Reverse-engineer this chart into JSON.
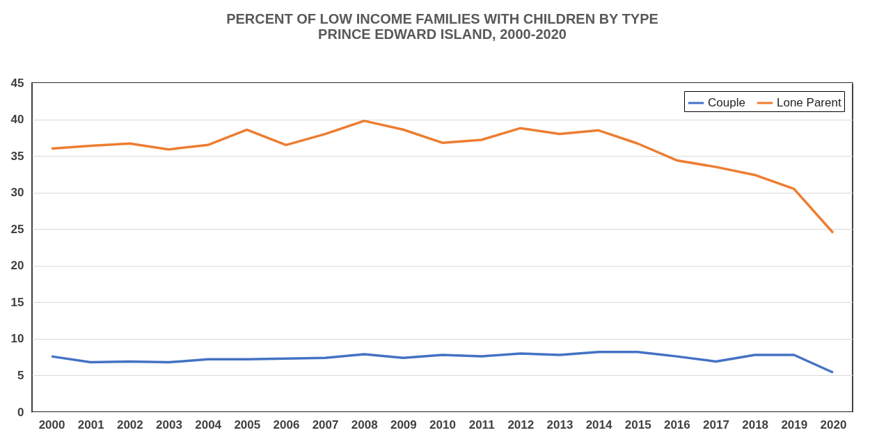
{
  "chart_data": {
    "type": "line",
    "title": "PERCENT OF LOW INCOME FAMILIES WITH CHILDREN BY TYPE",
    "subtitle": "PRINCE EDWARD ISLAND, 2000-2020",
    "categories": [
      "2000",
      "2001",
      "2002",
      "2003",
      "2004",
      "2005",
      "2006",
      "2007",
      "2008",
      "2009",
      "2010",
      "2011",
      "2012",
      "2013",
      "2014",
      "2015",
      "2016",
      "2017",
      "2018",
      "2019",
      "2020"
    ],
    "series": [
      {
        "name": "Couple",
        "color": "#4472c4",
        "values": [
          7.6,
          6.8,
          6.9,
          6.8,
          7.2,
          7.2,
          7.3,
          7.4,
          7.9,
          7.4,
          7.8,
          7.6,
          8.0,
          7.8,
          8.2,
          8.2,
          7.6,
          6.9,
          7.8,
          7.8,
          5.4
        ]
      },
      {
        "name": "Lone Parent",
        "color": "#ed7d31",
        "values": [
          36.0,
          36.4,
          36.7,
          35.9,
          36.5,
          38.6,
          36.5,
          38.0,
          39.8,
          38.6,
          36.8,
          37.2,
          38.8,
          38.0,
          38.5,
          36.7,
          34.4,
          33.5,
          32.4,
          30.5,
          24.5
        ]
      }
    ],
    "ylim": [
      0,
      45
    ],
    "yticks": [
      0,
      5,
      10,
      15,
      20,
      25,
      30,
      35,
      40,
      45
    ],
    "grid": "y",
    "legend": "top right",
    "marker": "none",
    "line_style": "solid"
  }
}
